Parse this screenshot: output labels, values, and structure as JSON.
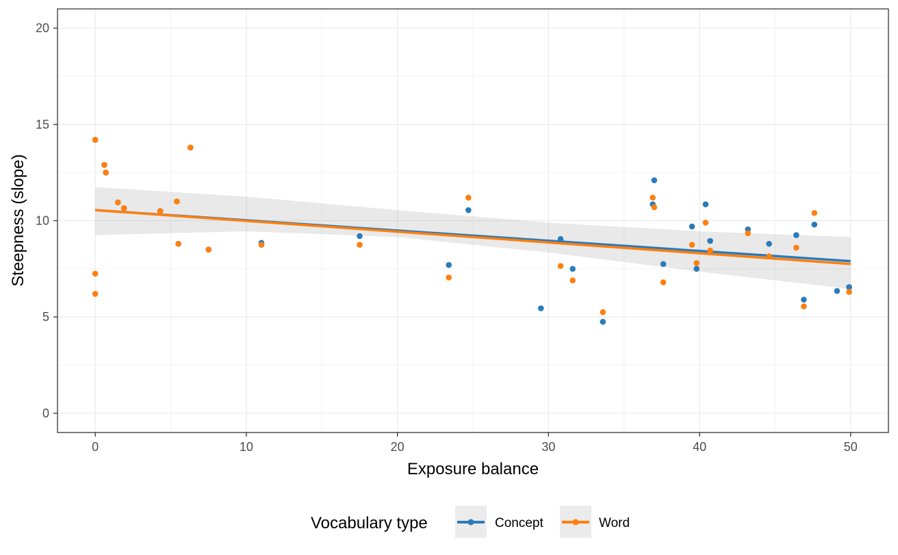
{
  "chart_data": {
    "type": "scatter",
    "title": "",
    "xlabel": "Exposure balance",
    "ylabel": "Steepness (slope)",
    "xlim": [
      -2.5,
      52.5
    ],
    "ylim": [
      -1,
      21
    ],
    "x_ticks": [
      0,
      10,
      20,
      30,
      40,
      50
    ],
    "y_ticks": [
      0,
      5,
      10,
      15,
      20
    ],
    "x_tick_labels": [
      "0",
      "10",
      "20",
      "30",
      "40",
      "50"
    ],
    "y_tick_labels": [
      "0",
      "5",
      "10",
      "15",
      "20"
    ],
    "grid": true,
    "legend": {
      "title": "Vocabulary type",
      "position": "bottom"
    },
    "series": [
      {
        "name": "Concept",
        "color": "#2b7bba",
        "points": [
          [
            0.0,
            14.2
          ],
          [
            0.6,
            12.9
          ],
          [
            0.7,
            12.5
          ],
          [
            1.5,
            10.95
          ],
          [
            1.9,
            10.65
          ],
          [
            4.3,
            10.5
          ],
          [
            5.4,
            11.0
          ],
          [
            5.5,
            8.8
          ],
          [
            6.3,
            13.8
          ],
          [
            7.5,
            8.5
          ],
          [
            11.0,
            8.85
          ],
          [
            17.5,
            9.2
          ],
          [
            23.4,
            7.7
          ],
          [
            24.7,
            10.55
          ],
          [
            29.5,
            5.45
          ],
          [
            30.8,
            9.05
          ],
          [
            31.6,
            7.5
          ],
          [
            33.6,
            4.75
          ],
          [
            36.9,
            10.85
          ],
          [
            37.0,
            12.1
          ],
          [
            37.6,
            7.75
          ],
          [
            39.5,
            9.7
          ],
          [
            39.8,
            7.5
          ],
          [
            40.4,
            10.85
          ],
          [
            40.7,
            8.95
          ],
          [
            43.2,
            9.55
          ],
          [
            44.6,
            8.8
          ],
          [
            46.4,
            9.25
          ],
          [
            46.9,
            5.9
          ],
          [
            47.6,
            9.8
          ],
          [
            49.1,
            6.35
          ],
          [
            49.9,
            6.55
          ]
        ],
        "fit": {
          "x": [
            0,
            50
          ],
          "y": [
            10.55,
            7.9
          ]
        }
      },
      {
        "name": "Word",
        "color": "#ff7f0e",
        "points": [
          [
            0.0,
            14.2
          ],
          [
            0.0,
            7.25
          ],
          [
            0.0,
            6.2
          ],
          [
            0.6,
            12.9
          ],
          [
            0.7,
            12.5
          ],
          [
            1.5,
            10.95
          ],
          [
            1.9,
            10.65
          ],
          [
            4.3,
            10.5
          ],
          [
            5.4,
            11.0
          ],
          [
            5.5,
            8.8
          ],
          [
            6.3,
            13.8
          ],
          [
            7.5,
            8.5
          ],
          [
            11.0,
            8.75
          ],
          [
            17.5,
            8.75
          ],
          [
            23.4,
            7.05
          ],
          [
            24.7,
            11.2
          ],
          [
            30.8,
            7.65
          ],
          [
            31.6,
            6.9
          ],
          [
            33.6,
            5.25
          ],
          [
            36.9,
            11.2
          ],
          [
            37.0,
            10.7
          ],
          [
            37.6,
            6.8
          ],
          [
            39.5,
            8.75
          ],
          [
            39.8,
            7.8
          ],
          [
            40.4,
            9.9
          ],
          [
            40.7,
            8.45
          ],
          [
            43.2,
            9.35
          ],
          [
            44.6,
            8.15
          ],
          [
            46.4,
            8.6
          ],
          [
            46.9,
            5.55
          ],
          [
            47.6,
            10.4
          ],
          [
            49.9,
            6.3
          ]
        ],
        "fit": {
          "x": [
            0,
            50
          ],
          "y": [
            10.55,
            7.75
          ]
        }
      }
    ],
    "confidence_band": {
      "x": [
        0,
        10,
        20,
        30,
        40,
        50
      ],
      "upper": [
        11.75,
        11.25,
        10.55,
        9.9,
        9.45,
        9.15
      ],
      "lower": [
        9.25,
        9.45,
        9.15,
        8.35,
        7.35,
        6.45
      ]
    }
  }
}
